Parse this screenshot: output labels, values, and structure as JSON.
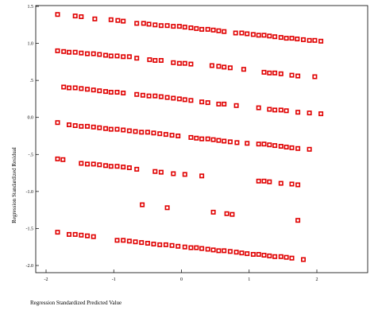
{
  "chart_data": {
    "type": "scatter",
    "title": "",
    "xlabel": "Regression Standardized Predicted Value",
    "ylabel": "Regression Standardized Residual",
    "xlim": [
      -2,
      3
    ],
    "ylim": [
      -2.1,
      1.5
    ],
    "x_ticks": [
      -2,
      -1,
      0,
      1,
      2
    ],
    "x_tick_labels": [
      "-2",
      "-1",
      "0",
      "1",
      "2"
    ],
    "y_ticks": [
      1.5,
      1.0,
      0.5,
      0.0,
      -0.5,
      -1.0,
      -1.5,
      -2.0
    ],
    "y_tick_labels": [
      "1.5",
      "1.0",
      ".5",
      "0.0",
      "-.5",
      "-1.0",
      "-1.5",
      "-2.0"
    ],
    "marker": "hollow-square",
    "marker_color": "#e00000",
    "grid": false,
    "legend": "none",
    "series": [
      {
        "name": "",
        "points": [
          [
            -1.83,
            1.39
          ],
          [
            -1.57,
            1.37
          ],
          [
            -1.48,
            1.36
          ],
          [
            -1.28,
            1.33
          ],
          [
            -1.04,
            1.32
          ],
          [
            -0.94,
            1.31
          ],
          [
            -0.86,
            1.3
          ],
          [
            -0.66,
            1.27
          ],
          [
            -0.56,
            1.27
          ],
          [
            -0.48,
            1.26
          ],
          [
            -0.39,
            1.25
          ],
          [
            -0.3,
            1.24
          ],
          [
            -0.21,
            1.24
          ],
          [
            -0.12,
            1.23
          ],
          [
            -0.03,
            1.23
          ],
          [
            0.05,
            1.22
          ],
          [
            0.14,
            1.21
          ],
          [
            0.22,
            1.2
          ],
          [
            0.3,
            1.19
          ],
          [
            0.39,
            1.19
          ],
          [
            0.47,
            1.18
          ],
          [
            0.55,
            1.17
          ],
          [
            0.63,
            1.16
          ],
          [
            0.8,
            1.14
          ],
          [
            0.89,
            1.14
          ],
          [
            0.97,
            1.13
          ],
          [
            1.06,
            1.12
          ],
          [
            1.14,
            1.11
          ],
          [
            1.22,
            1.11
          ],
          [
            1.3,
            1.1
          ],
          [
            1.38,
            1.09
          ],
          [
            1.47,
            1.08
          ],
          [
            1.55,
            1.07
          ],
          [
            1.63,
            1.07
          ],
          [
            1.71,
            1.06
          ],
          [
            1.8,
            1.05
          ],
          [
            1.89,
            1.04
          ],
          [
            1.97,
            1.04
          ],
          [
            2.06,
            1.03
          ],
          [
            -1.83,
            0.9
          ],
          [
            -1.74,
            0.89
          ],
          [
            -1.66,
            0.88
          ],
          [
            -1.57,
            0.88
          ],
          [
            -1.48,
            0.87
          ],
          [
            -1.39,
            0.86
          ],
          [
            -1.3,
            0.86
          ],
          [
            -1.21,
            0.85
          ],
          [
            -1.12,
            0.84
          ],
          [
            -1.04,
            0.83
          ],
          [
            -0.95,
            0.83
          ],
          [
            -0.86,
            0.82
          ],
          [
            -0.77,
            0.82
          ],
          [
            -0.66,
            0.8
          ],
          [
            -0.47,
            0.78
          ],
          [
            -0.39,
            0.77
          ],
          [
            -0.3,
            0.77
          ],
          [
            -0.12,
            0.74
          ],
          [
            -0.03,
            0.73
          ],
          [
            0.05,
            0.73
          ],
          [
            0.14,
            0.72
          ],
          [
            0.45,
            0.7
          ],
          [
            0.55,
            0.69
          ],
          [
            0.63,
            0.68
          ],
          [
            0.72,
            0.67
          ],
          [
            0.92,
            0.65
          ],
          [
            1.22,
            0.61
          ],
          [
            1.3,
            0.6
          ],
          [
            1.38,
            0.6
          ],
          [
            1.47,
            0.59
          ],
          [
            1.63,
            0.57
          ],
          [
            1.72,
            0.56
          ],
          [
            1.97,
            0.55
          ],
          [
            -1.74,
            0.41
          ],
          [
            -1.66,
            0.4
          ],
          [
            -1.57,
            0.4
          ],
          [
            -1.48,
            0.39
          ],
          [
            -1.39,
            0.38
          ],
          [
            -1.3,
            0.37
          ],
          [
            -1.21,
            0.36
          ],
          [
            -1.12,
            0.35
          ],
          [
            -1.04,
            0.34
          ],
          [
            -0.95,
            0.34
          ],
          [
            -0.86,
            0.33
          ],
          [
            -0.66,
            0.31
          ],
          [
            -0.57,
            0.3
          ],
          [
            -0.48,
            0.29
          ],
          [
            -0.39,
            0.29
          ],
          [
            -0.3,
            0.28
          ],
          [
            -0.21,
            0.27
          ],
          [
            -0.12,
            0.26
          ],
          [
            -0.03,
            0.25
          ],
          [
            0.05,
            0.24
          ],
          [
            0.14,
            0.23
          ],
          [
            0.3,
            0.21
          ],
          [
            0.39,
            0.2
          ],
          [
            0.55,
            0.18
          ],
          [
            0.63,
            0.18
          ],
          [
            0.81,
            0.16
          ],
          [
            1.14,
            0.13
          ],
          [
            1.3,
            0.11
          ],
          [
            1.38,
            0.1
          ],
          [
            1.47,
            0.1
          ],
          [
            1.55,
            0.09
          ],
          [
            1.72,
            0.07
          ],
          [
            1.89,
            0.06
          ],
          [
            2.06,
            0.05
          ],
          [
            -1.83,
            -0.07
          ],
          [
            -1.66,
            -0.1
          ],
          [
            -1.57,
            -0.11
          ],
          [
            -1.48,
            -0.12
          ],
          [
            -1.39,
            -0.12
          ],
          [
            -1.3,
            -0.13
          ],
          [
            -1.21,
            -0.14
          ],
          [
            -1.12,
            -0.15
          ],
          [
            -1.04,
            -0.16
          ],
          [
            -0.95,
            -0.16
          ],
          [
            -0.86,
            -0.17
          ],
          [
            -0.77,
            -0.18
          ],
          [
            -0.68,
            -0.19
          ],
          [
            -0.59,
            -0.2
          ],
          [
            -0.5,
            -0.2
          ],
          [
            -0.41,
            -0.21
          ],
          [
            -0.32,
            -0.22
          ],
          [
            -0.23,
            -0.23
          ],
          [
            -0.14,
            -0.24
          ],
          [
            -0.05,
            -0.25
          ],
          [
            0.14,
            -0.27
          ],
          [
            0.22,
            -0.28
          ],
          [
            0.3,
            -0.29
          ],
          [
            0.39,
            -0.29
          ],
          [
            0.47,
            -0.3
          ],
          [
            0.55,
            -0.31
          ],
          [
            0.63,
            -0.32
          ],
          [
            0.72,
            -0.33
          ],
          [
            0.82,
            -0.34
          ],
          [
            0.97,
            -0.35
          ],
          [
            1.14,
            -0.36
          ],
          [
            1.22,
            -0.36
          ],
          [
            1.3,
            -0.37
          ],
          [
            1.38,
            -0.38
          ],
          [
            1.47,
            -0.39
          ],
          [
            1.55,
            -0.4
          ],
          [
            1.63,
            -0.41
          ],
          [
            1.72,
            -0.42
          ],
          [
            1.89,
            -0.43
          ],
          [
            -1.83,
            -0.56
          ],
          [
            -1.75,
            -0.57
          ],
          [
            -1.48,
            -0.62
          ],
          [
            -1.39,
            -0.63
          ],
          [
            -1.3,
            -0.63
          ],
          [
            -1.21,
            -0.64
          ],
          [
            -1.12,
            -0.65
          ],
          [
            -1.04,
            -0.66
          ],
          [
            -0.95,
            -0.66
          ],
          [
            -0.86,
            -0.67
          ],
          [
            -0.77,
            -0.68
          ],
          [
            -0.66,
            -0.7
          ],
          [
            -0.39,
            -0.73
          ],
          [
            -0.3,
            -0.74
          ],
          [
            -0.12,
            -0.76
          ],
          [
            0.05,
            -0.77
          ],
          [
            0.3,
            -0.79
          ],
          [
            1.14,
            -0.86
          ],
          [
            1.22,
            -0.86
          ],
          [
            1.3,
            -0.87
          ],
          [
            1.47,
            -0.89
          ],
          [
            1.63,
            -0.9
          ],
          [
            1.72,
            -0.91
          ],
          [
            -0.58,
            -1.18
          ],
          [
            -0.21,
            -1.22
          ],
          [
            0.47,
            -1.28
          ],
          [
            0.67,
            -1.3
          ],
          [
            0.75,
            -1.31
          ],
          [
            1.72,
            -1.39
          ],
          [
            -1.83,
            -1.55
          ],
          [
            -1.66,
            -1.58
          ],
          [
            -1.57,
            -1.58
          ],
          [
            -1.48,
            -1.59
          ],
          [
            -1.39,
            -1.6
          ],
          [
            -1.3,
            -1.61
          ],
          [
            -0.95,
            -1.66
          ],
          [
            -0.86,
            -1.66
          ],
          [
            -0.77,
            -1.67
          ],
          [
            -0.68,
            -1.68
          ],
          [
            -0.59,
            -1.69
          ],
          [
            -0.5,
            -1.7
          ],
          [
            -0.41,
            -1.71
          ],
          [
            -0.32,
            -1.72
          ],
          [
            -0.23,
            -1.72
          ],
          [
            -0.14,
            -1.73
          ],
          [
            -0.05,
            -1.74
          ],
          [
            0.05,
            -1.75
          ],
          [
            0.14,
            -1.76
          ],
          [
            0.22,
            -1.76
          ],
          [
            0.3,
            -1.77
          ],
          [
            0.39,
            -1.78
          ],
          [
            0.47,
            -1.79
          ],
          [
            0.55,
            -1.8
          ],
          [
            0.63,
            -1.8
          ],
          [
            0.72,
            -1.81
          ],
          [
            0.81,
            -1.82
          ],
          [
            0.89,
            -1.83
          ],
          [
            0.97,
            -1.84
          ],
          [
            1.06,
            -1.85
          ],
          [
            1.14,
            -1.85
          ],
          [
            1.22,
            -1.86
          ],
          [
            1.3,
            -1.87
          ],
          [
            1.38,
            -1.88
          ],
          [
            1.47,
            -1.88
          ],
          [
            1.55,
            -1.89
          ],
          [
            1.63,
            -1.9
          ],
          [
            1.8,
            -1.92
          ]
        ]
      }
    ]
  }
}
